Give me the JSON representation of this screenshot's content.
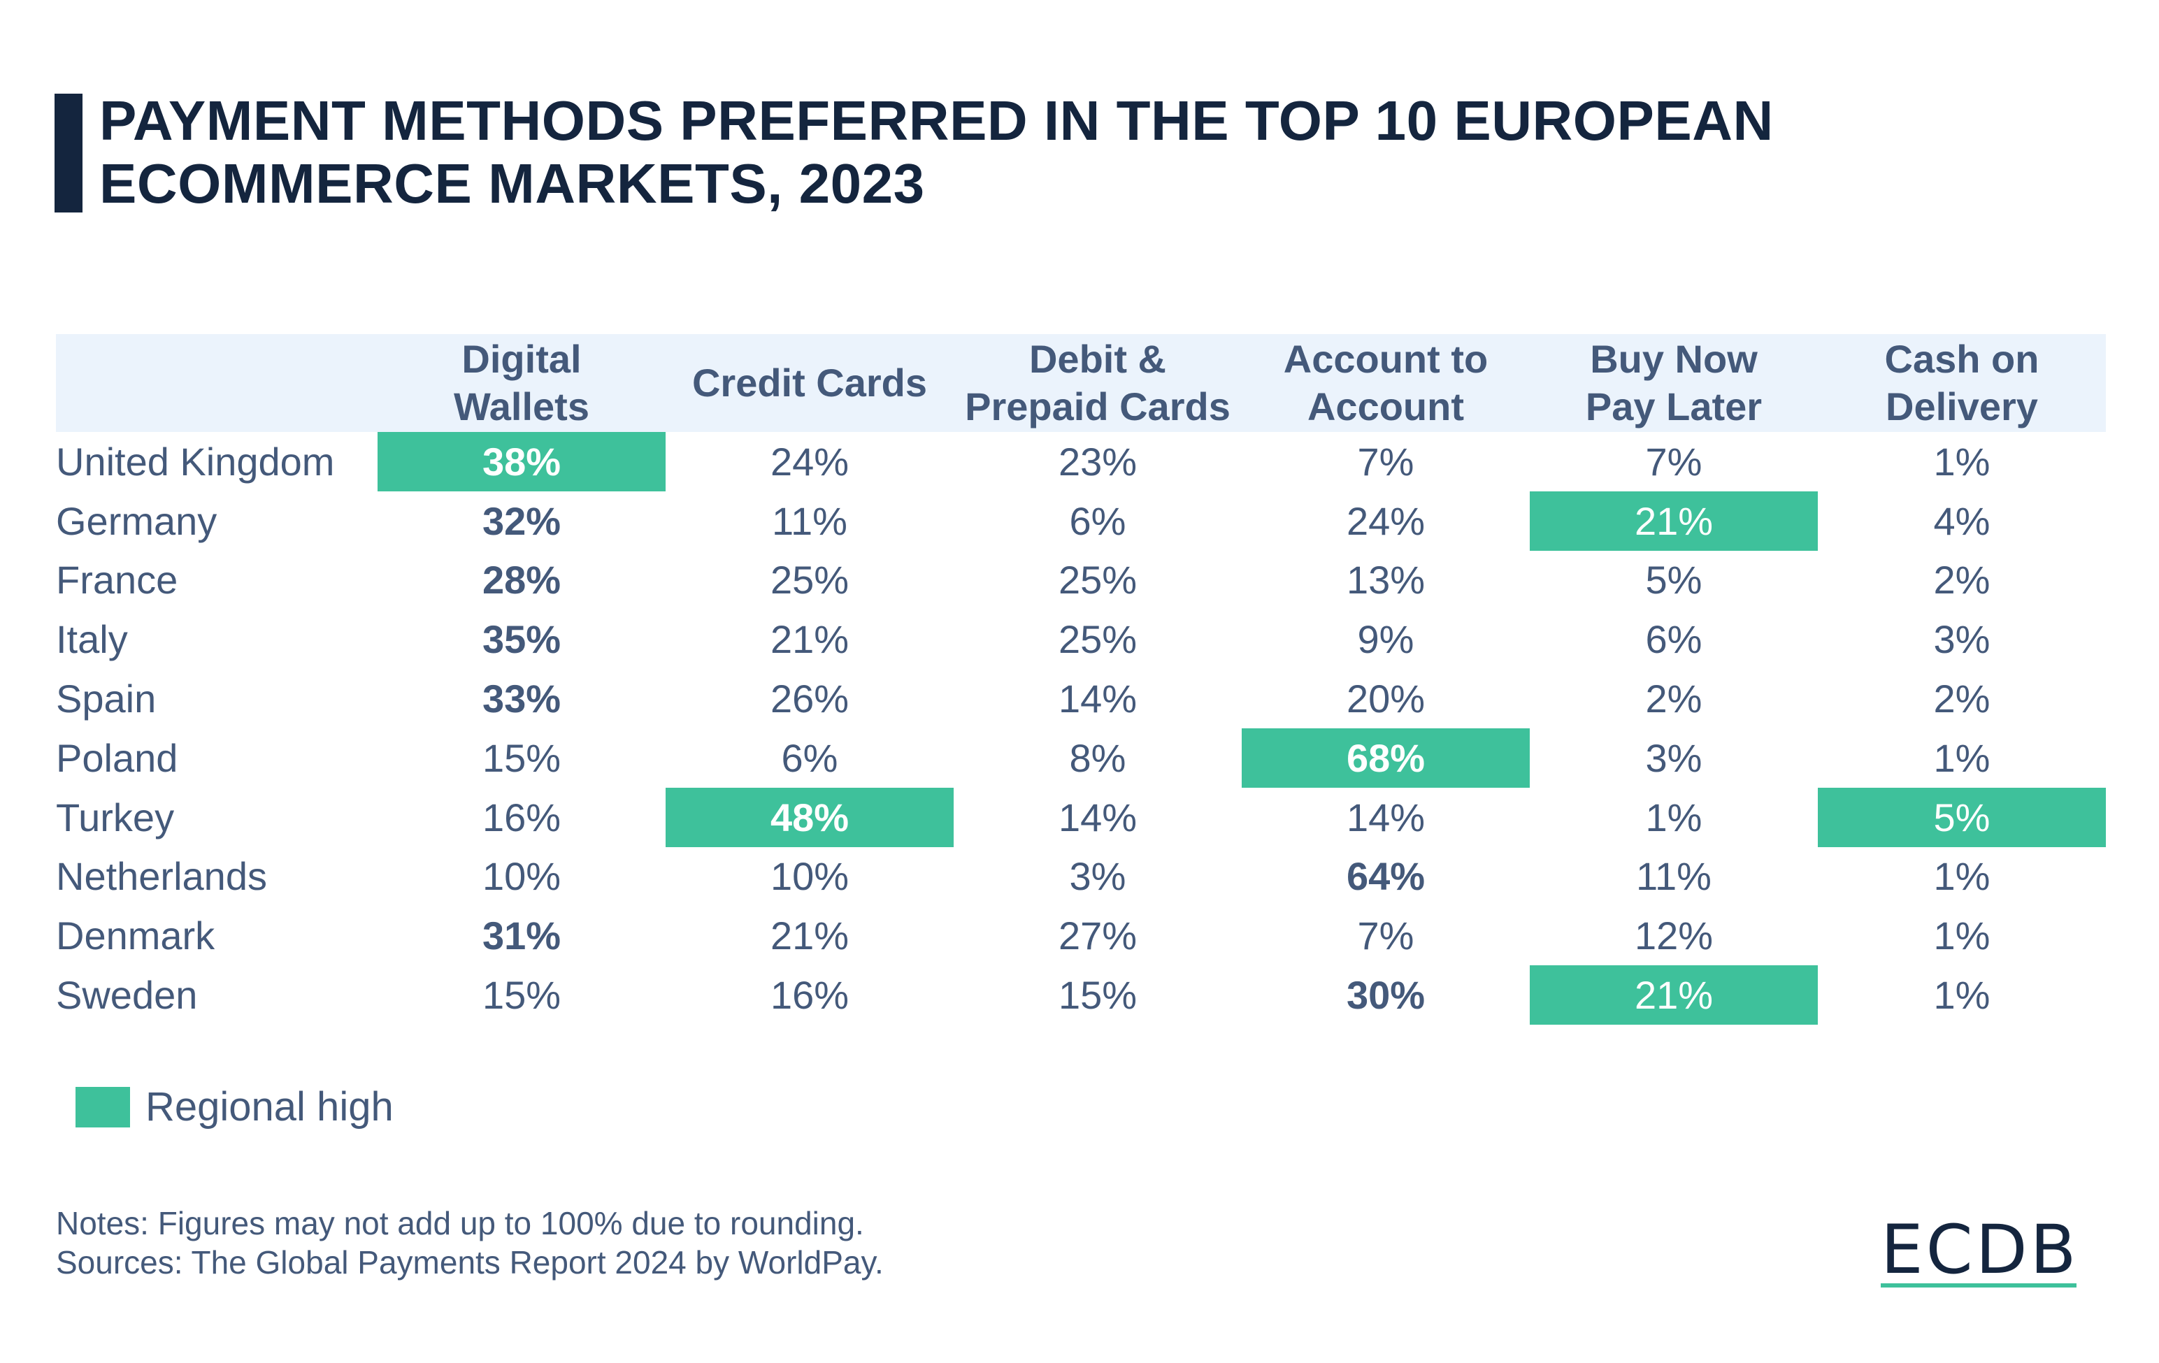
{
  "chart_data": {
    "type": "table",
    "title": "PAYMENT METHODS PREFERRED IN THE TOP 10 EUROPEAN ECOMMERCE MARKETS, 2023",
    "columns": [
      "",
      "Digital Wallets",
      "Credit Cards",
      "Debit & Prepaid Cards",
      "Account to Account",
      "Buy Now Pay Later",
      "Cash on Delivery"
    ],
    "rows": [
      {
        "country": "United Kingdom",
        "cells": [
          {
            "v": "38%",
            "bold": true,
            "high": true
          },
          {
            "v": "24%"
          },
          {
            "v": "23%"
          },
          {
            "v": "7%"
          },
          {
            "v": "7%"
          },
          {
            "v": "1%"
          }
        ]
      },
      {
        "country": "Germany",
        "cells": [
          {
            "v": "32%",
            "bold": true
          },
          {
            "v": "11%"
          },
          {
            "v": "6%"
          },
          {
            "v": "24%"
          },
          {
            "v": "21%",
            "high": true
          },
          {
            "v": "4%"
          }
        ]
      },
      {
        "country": "France",
        "cells": [
          {
            "v": "28%",
            "bold": true
          },
          {
            "v": "25%"
          },
          {
            "v": "25%"
          },
          {
            "v": "13%"
          },
          {
            "v": "5%"
          },
          {
            "v": "2%"
          }
        ]
      },
      {
        "country": "Italy",
        "cells": [
          {
            "v": "35%",
            "bold": true
          },
          {
            "v": "21%"
          },
          {
            "v": "25%"
          },
          {
            "v": "9%"
          },
          {
            "v": "6%"
          },
          {
            "v": "3%"
          }
        ]
      },
      {
        "country": "Spain",
        "cells": [
          {
            "v": "33%",
            "bold": true
          },
          {
            "v": "26%"
          },
          {
            "v": "14%"
          },
          {
            "v": "20%"
          },
          {
            "v": "2%"
          },
          {
            "v": "2%"
          }
        ]
      },
      {
        "country": "Poland",
        "cells": [
          {
            "v": "15%"
          },
          {
            "v": "6%"
          },
          {
            "v": "8%"
          },
          {
            "v": "68%",
            "bold": true,
            "high": true
          },
          {
            "v": "3%"
          },
          {
            "v": "1%"
          }
        ]
      },
      {
        "country": "Turkey",
        "cells": [
          {
            "v": "16%"
          },
          {
            "v": "48%",
            "bold": true,
            "high": true
          },
          {
            "v": "14%"
          },
          {
            "v": "14%"
          },
          {
            "v": "1%"
          },
          {
            "v": "5%",
            "high": true
          }
        ]
      },
      {
        "country": "Netherlands",
        "cells": [
          {
            "v": "10%"
          },
          {
            "v": "10%"
          },
          {
            "v": "3%"
          },
          {
            "v": "64%",
            "bold": true
          },
          {
            "v": "11%"
          },
          {
            "v": "1%"
          }
        ]
      },
      {
        "country": "Denmark",
        "cells": [
          {
            "v": "31%",
            "bold": true
          },
          {
            "v": "21%"
          },
          {
            "v": "27%"
          },
          {
            "v": "7%"
          },
          {
            "v": "12%"
          },
          {
            "v": "1%"
          }
        ]
      },
      {
        "country": "Sweden",
        "cells": [
          {
            "v": "15%"
          },
          {
            "v": "16%"
          },
          {
            "v": "15%"
          },
          {
            "v": "30%",
            "bold": true
          },
          {
            "v": "21%",
            "high": true
          },
          {
            "v": "1%"
          }
        ]
      }
    ],
    "legend": {
      "label": "Regional high",
      "color": "#3ec19b"
    },
    "colors": {
      "highlight": "#3ec19b",
      "header_bg": "#ebf3fc",
      "title": "#14253e",
      "text": "#44597a"
    }
  },
  "header_lines": [
    "Digital\nWallets",
    "Credit Cards",
    "Debit &\nPrepaid Cards",
    "Account to\nAccount",
    "Buy Now\nPay Later",
    "Cash on\nDelivery"
  ],
  "notes": "Notes: Figures may not add up to 100% due to rounding.",
  "sources": "Sources: The Global Payments Report 2024 by WorldPay.",
  "logo": "ECDB"
}
